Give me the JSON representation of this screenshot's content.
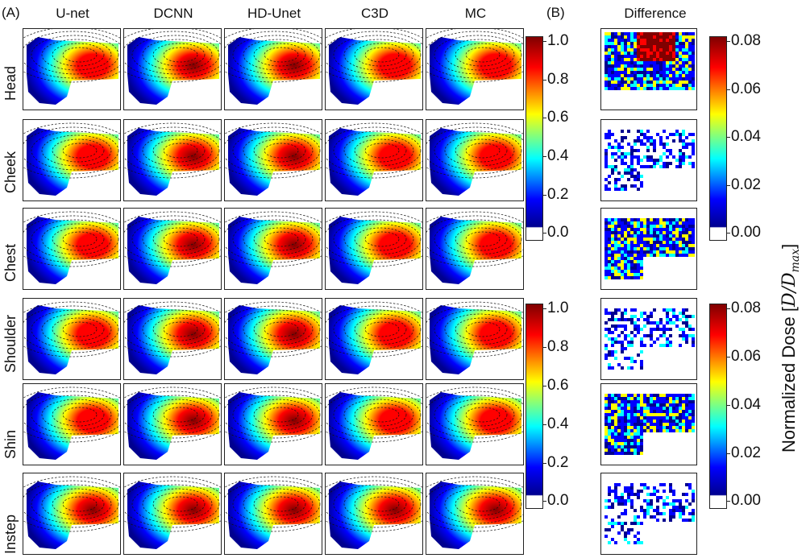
{
  "panel_a_label": "(A)",
  "panel_b_label": "(B)",
  "columns": [
    "U-net",
    "DCNN",
    "HD-Unet",
    "C3D",
    "MC"
  ],
  "difference_header": "Difference",
  "rows": [
    "Head",
    "Cheek",
    "Chest",
    "Shoulder",
    "Shin",
    "Instep"
  ],
  "dose_colorbar_ticks": [
    "1.0",
    "0.8",
    "0.6",
    "0.4",
    "0.2",
    "0.0"
  ],
  "difference_colorbar_ticks": [
    "0.08",
    "0.06",
    "0.04",
    "0.02",
    "0.00"
  ],
  "axis_title": {
    "prefix": "Normalized Dose [",
    "math": "D/D",
    "sub": "max",
    "suffix": "]"
  },
  "colors": {
    "jet_dark_blue": "#00008f",
    "jet_blue": "#0000ff",
    "jet_cyan": "#00ffff",
    "jet_yellow": "#ffff00",
    "jet_red": "#ff0000",
    "jet_dark_red": "#800000",
    "contour": "#111111"
  }
}
